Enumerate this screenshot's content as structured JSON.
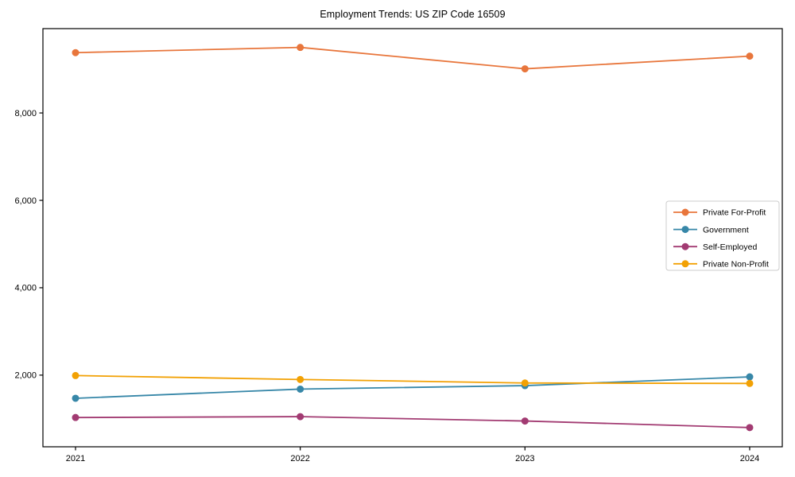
{
  "page": {
    "background_color": "#ffffff"
  },
  "chart_data": {
    "type": "line",
    "title": "Employment Trends: US ZIP Code 16509",
    "xlabel": "",
    "ylabel": "",
    "categories": [
      "2021",
      "2022",
      "2023",
      "2024"
    ],
    "series": [
      {
        "name": "Private For-Profit",
        "color": "#e8763c",
        "values": [
          9380,
          9500,
          9010,
          9300
        ]
      },
      {
        "name": "Government",
        "color": "#3787a8",
        "values": [
          1470,
          1680,
          1760,
          1960
        ]
      },
      {
        "name": "Self-Employed",
        "color": "#a23b72",
        "values": [
          1030,
          1050,
          950,
          800
        ]
      },
      {
        "name": "Private Non-Profit",
        "color": "#f2a104",
        "values": [
          1990,
          1900,
          1820,
          1810
        ]
      }
    ],
    "ylim": [
      360,
      9930
    ],
    "y_ticks": [
      2000,
      4000,
      6000,
      8000
    ],
    "y_tick_labels": [
      "2,000",
      "4,000",
      "6,000",
      "8,000"
    ],
    "grid": false,
    "marker": "circle",
    "legend_position": "center-right",
    "legend_border_color": "#cccccc",
    "axis_color": "#000000",
    "tick_label_color": "#000000"
  }
}
